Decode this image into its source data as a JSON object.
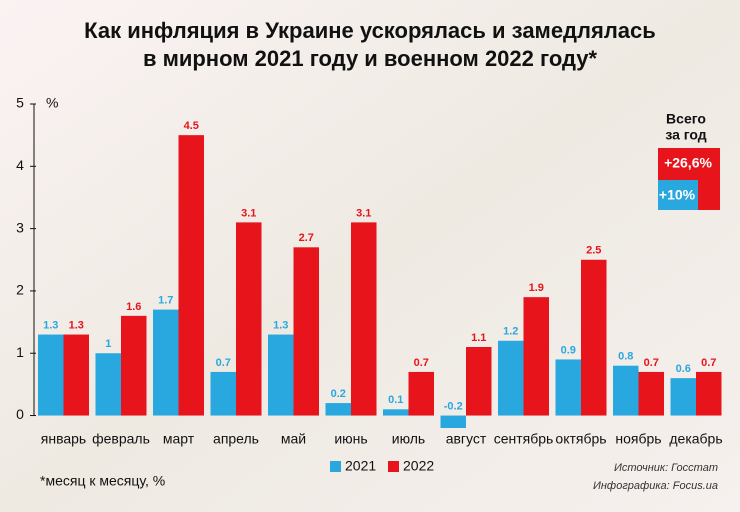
{
  "chart_data": {
    "type": "bar",
    "title": [
      "Как инфляция в Украине ускорялась и замедлялась",
      "в мирном 2021 году и военном 2022 году*"
    ],
    "y_unit": "%",
    "categories": [
      "январь",
      "февраль",
      "март",
      "апрель",
      "май",
      "июнь",
      "июль",
      "август",
      "сентябрь",
      "октябрь",
      "ноябрь",
      "декабрь"
    ],
    "series": [
      {
        "name": "2021",
        "color": "#29a8e0",
        "values": [
          1.3,
          1.0,
          1.7,
          0.7,
          1.3,
          0.2,
          0.1,
          -0.2,
          1.2,
          0.9,
          0.8,
          0.6
        ]
      },
      {
        "name": "2022",
        "color": "#e8141c",
        "values": [
          1.3,
          1.6,
          4.5,
          3.1,
          2.7,
          3.1,
          0.7,
          1.1,
          1.9,
          2.5,
          0.7,
          0.7
        ]
      }
    ],
    "ylim": [
      -0.2,
      5
    ],
    "yticks": [
      0,
      1,
      2,
      3,
      4,
      5
    ],
    "totals": {
      "title": [
        "Всего",
        "за год"
      ],
      "series_2022": "+26,6%",
      "series_2021": "+10%"
    },
    "footnote": "*месяц к месяцу, %",
    "source": [
      "Источник: Госстат",
      "Инфографика: Focus.ua"
    ]
  }
}
